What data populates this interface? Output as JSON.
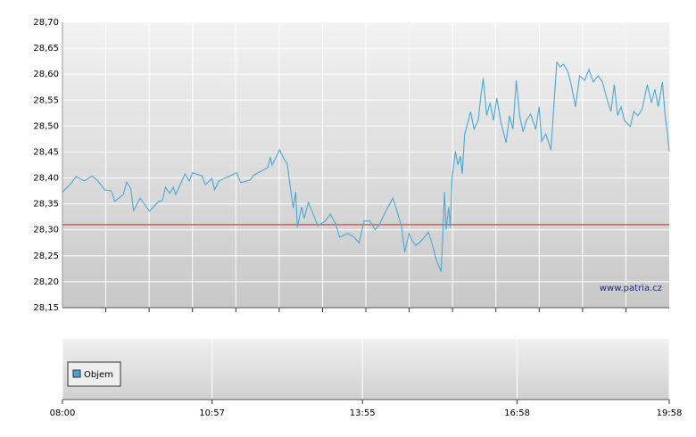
{
  "chart_data": {
    "type": "line",
    "color": "#4aa8d8",
    "x": [
      480,
      491,
      496,
      506,
      515,
      522,
      530,
      538,
      542,
      552,
      556,
      561,
      564,
      572,
      583,
      594,
      598,
      602,
      607,
      611,
      614,
      625,
      630,
      634,
      645,
      649,
      657,
      660,
      665,
      686,
      691,
      702,
      707,
      723,
      726,
      728,
      737,
      743,
      746,
      750,
      753,
      756,
      758,
      763,
      766,
      771,
      777,
      782,
      791,
      797,
      803,
      808,
      818,
      825,
      831,
      837,
      844,
      850,
      855,
      862,
      871,
      877,
      881,
      885,
      890,
      894,
      898,
      902,
      909,
      913,
      917,
      923,
      928,
      930,
      932,
      934,
      937,
      939,
      941,
      945,
      948,
      951,
      953,
      956,
      959,
      963,
      967,
      972,
      975,
      978,
      982,
      986,
      990,
      994,
      999,
      1005,
      1009,
      1013,
      1017,
      1021,
      1025,
      1029,
      1034,
      1040,
      1044,
      1047,
      1052,
      1058,
      1061,
      1065,
      1069,
      1073,
      1078,
      1082,
      1087,
      1092,
      1098,
      1103,
      1108,
      1114,
      1119,
      1124,
      1129,
      1133,
      1137,
      1141,
      1145,
      1152,
      1156,
      1161,
      1166,
      1172,
      1177,
      1181,
      1185,
      1190,
      1193,
      1196,
      1198
    ],
    "values": [
      28.373,
      28.391,
      28.403,
      28.394,
      28.404,
      28.394,
      28.377,
      28.375,
      28.355,
      28.368,
      28.392,
      28.379,
      28.337,
      28.361,
      28.336,
      28.355,
      28.356,
      28.382,
      28.37,
      28.382,
      28.368,
      28.408,
      28.394,
      28.41,
      28.404,
      28.387,
      28.399,
      28.377,
      28.394,
      28.41,
      28.391,
      28.396,
      28.406,
      28.42,
      28.44,
      28.425,
      28.454,
      28.434,
      28.428,
      28.377,
      28.342,
      28.373,
      28.305,
      28.344,
      28.322,
      28.353,
      28.329,
      28.308,
      28.317,
      28.33,
      28.313,
      28.286,
      28.293,
      28.286,
      28.275,
      28.317,
      28.317,
      28.3,
      28.31,
      28.334,
      28.361,
      28.33,
      28.308,
      28.257,
      28.293,
      28.279,
      28.27,
      28.275,
      28.287,
      28.296,
      28.275,
      28.239,
      28.22,
      28.287,
      28.373,
      28.3,
      28.344,
      28.305,
      28.399,
      28.451,
      28.425,
      28.442,
      28.408,
      28.485,
      28.502,
      28.528,
      28.494,
      28.511,
      28.557,
      28.592,
      28.52,
      28.545,
      28.511,
      28.554,
      28.506,
      28.468,
      28.52,
      28.494,
      28.588,
      28.52,
      28.489,
      28.511,
      28.523,
      28.494,
      28.537,
      28.471,
      28.485,
      28.454,
      28.528,
      28.623,
      28.614,
      28.619,
      28.605,
      28.58,
      28.537,
      28.597,
      28.588,
      28.609,
      28.585,
      28.597,
      28.585,
      28.554,
      28.528,
      28.58,
      28.52,
      28.537,
      28.511,
      28.499,
      28.528,
      28.52,
      28.533,
      28.58,
      28.545,
      28.571,
      28.537,
      28.585,
      28.523,
      28.485,
      28.451
    ],
    "xlim": [
      480,
      1198
    ],
    "xticks": [
      {
        "value": 480,
        "label": "08:00"
      },
      {
        "value": 657,
        "label": "10:57"
      },
      {
        "value": 835,
        "label": "13:55"
      },
      {
        "value": 1018,
        "label": "16:58"
      },
      {
        "value": 1198,
        "label": "19:58"
      }
    ],
    "ylim": [
      28.15,
      28.7
    ],
    "yticks": [
      {
        "value": 28.15,
        "label": "28,15"
      },
      {
        "value": 28.2,
        "label": "28,20"
      },
      {
        "value": 28.25,
        "label": "28,25"
      },
      {
        "value": 28.3,
        "label": "28,30"
      },
      {
        "value": 28.35,
        "label": "28,35"
      },
      {
        "value": 28.4,
        "label": "28,40"
      },
      {
        "value": 28.45,
        "label": "28,45"
      },
      {
        "value": 28.5,
        "label": "28,50"
      },
      {
        "value": 28.55,
        "label": "28,55"
      },
      {
        "value": 28.6,
        "label": "28,60"
      },
      {
        "value": 28.65,
        "label": "28,65"
      },
      {
        "value": 28.7,
        "label": "28,70"
      }
    ],
    "grid": true,
    "reference_line": {
      "value": 28.31,
      "color": "#e04040"
    },
    "watermark": "www.patria.cz",
    "volume": {
      "name": "Objem",
      "color": "#4a9fd4"
    }
  }
}
